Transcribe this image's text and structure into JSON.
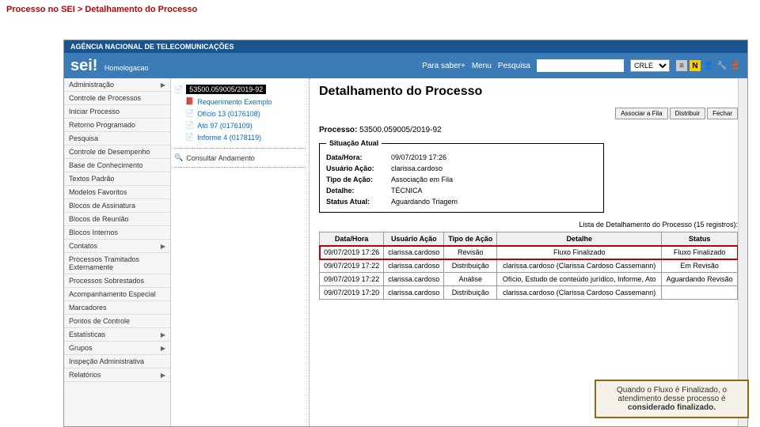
{
  "slide_title": "Processo no SEI > Detalhamento do Processo",
  "header": {
    "agency": "AGÊNCIA NACIONAL DE TELECOMUNICAÇÕES",
    "logo": "sei!",
    "env": "Homologacao",
    "menu": {
      "saber": "Para saber+",
      "menu": "Menu",
      "pesquisa": "Pesquisa"
    },
    "unit": "CRLE"
  },
  "sidebar": [
    {
      "label": "Administração",
      "expand": true
    },
    {
      "label": "Controle de Processos"
    },
    {
      "label": "Iniciar Processo"
    },
    {
      "label": "Retorno Programado"
    },
    {
      "label": "Pesquisa"
    },
    {
      "label": "Controle de Desempenho"
    },
    {
      "label": "Base de Conhecimento"
    },
    {
      "label": "Textos Padrão"
    },
    {
      "label": "Modelos Favoritos"
    },
    {
      "label": "Blocos de Assinatura"
    },
    {
      "label": "Blocos de Reunião"
    },
    {
      "label": "Blocos Internos"
    },
    {
      "label": "Contatos",
      "expand": true
    },
    {
      "label": "Processos Tramitados Externamente"
    },
    {
      "label": "Processos Sobrestados"
    },
    {
      "label": "Acompanhamento Especial"
    },
    {
      "label": "Marcadores"
    },
    {
      "label": "Pontos de Controle"
    },
    {
      "label": "Estatísticas",
      "expand": true
    },
    {
      "label": "Grupos",
      "expand": true
    },
    {
      "label": "Inspeção Administrativa"
    },
    {
      "label": "Relatórios",
      "expand": true
    }
  ],
  "tree": {
    "root": "53500.059005/2019-92",
    "children": [
      {
        "label": "Requerimento Exemplo",
        "icon": "pdf",
        "color": "#c00"
      },
      {
        "label": "Ofício 13 (0176108)",
        "icon": "doc",
        "color": "#3b7cb8"
      },
      {
        "label": "Ato 97 (0176109)",
        "icon": "doc",
        "color": "#3b7cb8"
      },
      {
        "label": "Informe 4 (0178119)",
        "icon": "doc",
        "color": "#3b7cb8"
      }
    ],
    "consultar": "Consultar Andamento"
  },
  "content": {
    "title": "Detalhamento do Processo",
    "buttons": [
      "Associar a Fila",
      "Distribuir",
      "Fechar"
    ],
    "processo_label": "Processo:",
    "processo_num": "53500.059005/2019-92",
    "situacao": {
      "legend": "Situação Atual",
      "rows": [
        {
          "label": "Data/Hora:",
          "value": "09/07/2019 17:26"
        },
        {
          "label": "Usuário Ação:",
          "value": "clarissa.cardoso"
        },
        {
          "label": "Tipo de Ação:",
          "value": "Associação em Fila"
        },
        {
          "label": "Detalhe:",
          "value": "TÉCNICA"
        },
        {
          "label": "Status Atual:",
          "value": "Aguardando Triagem"
        }
      ]
    },
    "list_caption": "Lista de Detalhamento do Processo (15 registros):",
    "table": {
      "headers": [
        "Data/Hora",
        "Usuário Ação",
        "Tipo de Ação",
        "Detalhe",
        "Status"
      ],
      "rows": [
        {
          "cells": [
            "09/07/2019 17:26",
            "clarissa.cardoso",
            "Revisão",
            "Fluxo Finalizado",
            "Fluxo Finalizado"
          ],
          "highlight": true
        },
        {
          "cells": [
            "09/07/2019 17:22",
            "clarissa.cardoso",
            "Distribuição",
            "clarissa.cardoso (Clarissa Cardoso Cassemann)",
            "Em Revisão"
          ]
        },
        {
          "cells": [
            "09/07/2019 17:22",
            "clarissa.cardoso",
            "Análise",
            "Ofício, Estudo de conteúdo jurídico, Informe, Ato",
            "Aguardando Revisão"
          ]
        },
        {
          "cells": [
            "09/07/2019 17:20",
            "clarissa.cardoso",
            "Distribuição",
            "clarissa.cardoso (Clarissa Cardoso Cassemann)",
            ""
          ]
        }
      ]
    }
  },
  "callout": {
    "line1": "Quando o Fluxo é Finalizado, o",
    "line2": "atendimento desse processo é",
    "line3": "considerado finalizado."
  }
}
